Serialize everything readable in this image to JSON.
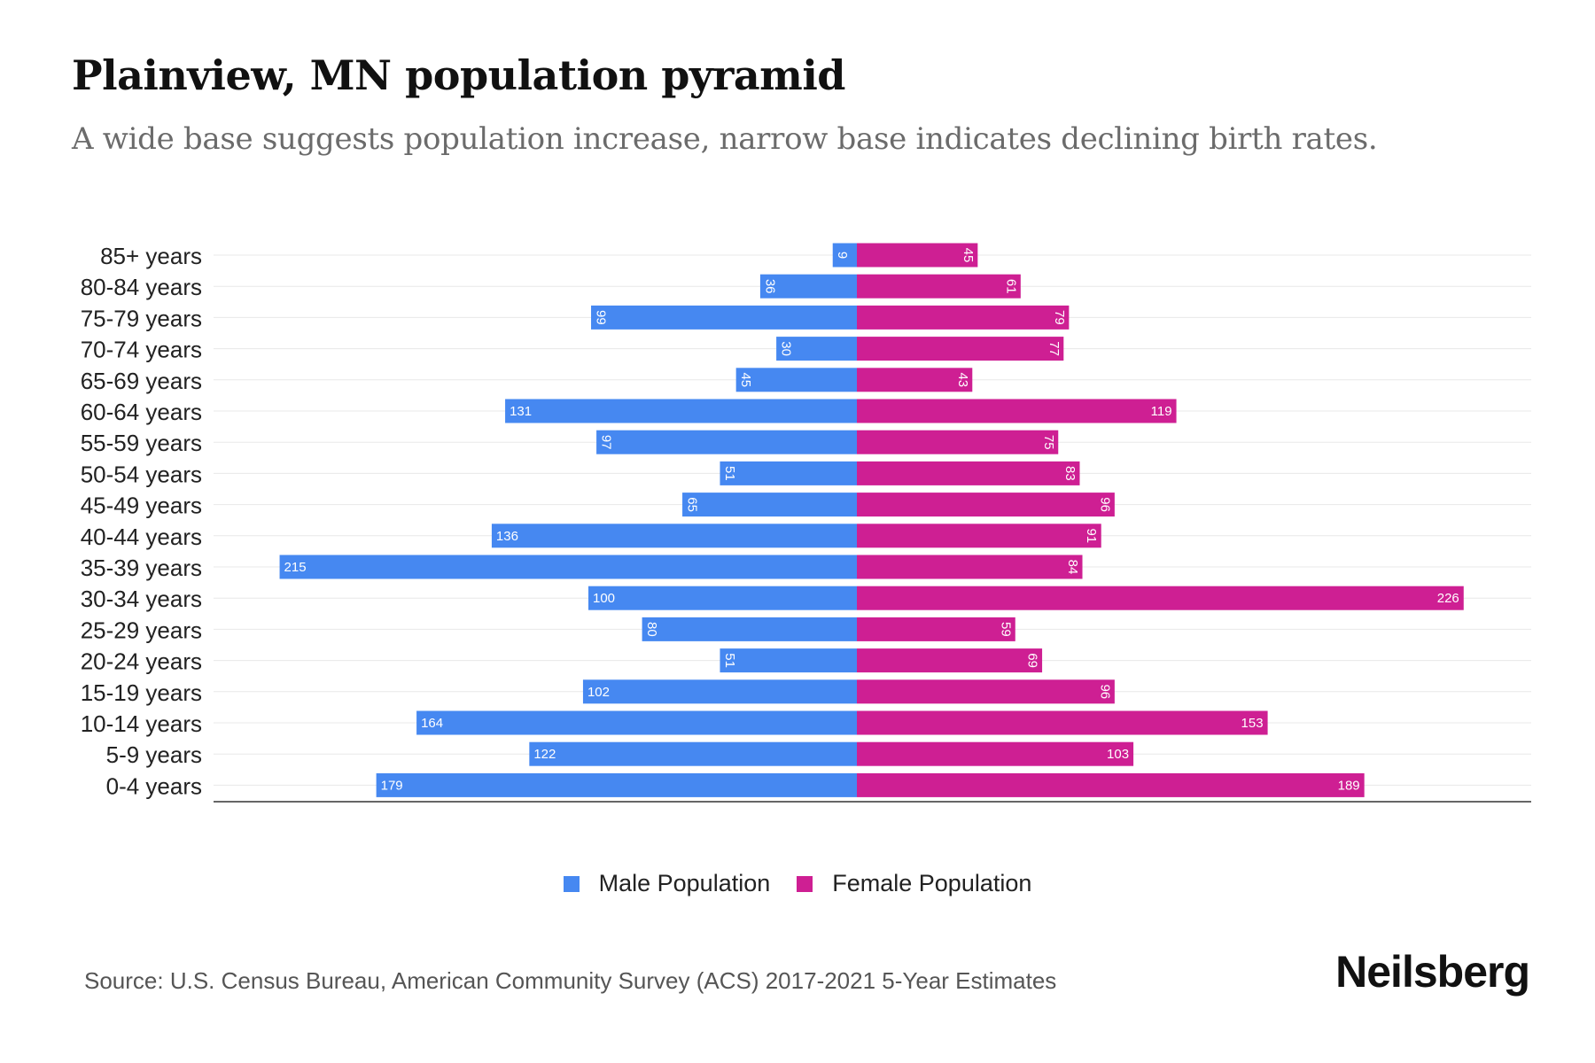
{
  "header": {
    "title": "Plainview, MN population pyramid",
    "subtitle": "A wide base suggests population increase, narrow base indicates declining birth rates."
  },
  "legend": {
    "male_label": "Male Population",
    "female_label": "Female Population"
  },
  "footer": {
    "source": "Source: U.S. Census Bureau, American Community Survey (ACS) 2017-2021 5-Year Estimates",
    "brand": "Neilsberg"
  },
  "colors": {
    "male": "#4688F1",
    "female": "#CE1F93",
    "grid": "#e8e8e8",
    "axis": "#333333"
  },
  "chart_data": {
    "type": "bar",
    "orientation": "horizontal-pyramid",
    "categories": [
      "85+ years",
      "80-84 years",
      "75-79 years",
      "70-74 years",
      "65-69 years",
      "60-64 years",
      "55-59 years",
      "50-54 years",
      "45-49 years",
      "40-44 years",
      "35-39 years",
      "30-34 years",
      "25-29 years",
      "20-24 years",
      "15-19 years",
      "10-14 years",
      "5-9 years",
      "0-4 years"
    ],
    "series": [
      {
        "name": "Male Population",
        "values": [
          9,
          36,
          99,
          30,
          45,
          131,
          97,
          51,
          65,
          136,
          215,
          100,
          80,
          51,
          102,
          164,
          122,
          179
        ]
      },
      {
        "name": "Female Population",
        "values": [
          45,
          61,
          79,
          77,
          43,
          119,
          75,
          83,
          96,
          91,
          84,
          226,
          59,
          69,
          96,
          153,
          103,
          189
        ]
      }
    ],
    "legend": "bottom-center",
    "grid": true
  }
}
